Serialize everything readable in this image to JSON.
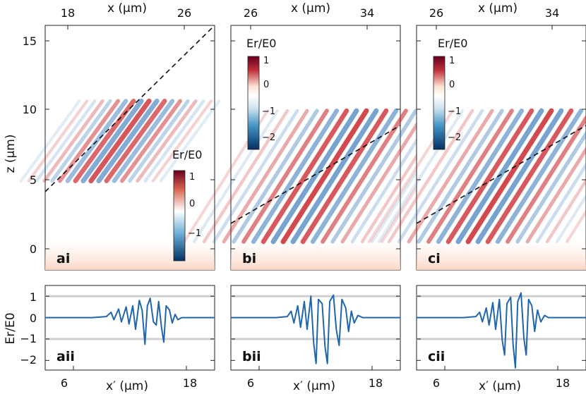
{
  "chart_data": [
    {
      "type": "heatmap",
      "panel_label": "ai",
      "top_xlabel": "x (µm)",
      "top_ticks": [
        "18",
        "26"
      ],
      "ylabel": "z (µm)",
      "yticks": [
        "0",
        "5",
        "10",
        "15"
      ],
      "ylim": [
        -2,
        16
      ],
      "colorbar": {
        "label": "Er/E0",
        "ticks": [
          "1",
          "0",
          "−1"
        ],
        "range": [
          -1.5,
          1.2
        ],
        "colormap": "RdBu_r"
      },
      "dashed_line": {
        "from_z": 4,
        "to_z": 16
      }
    },
    {
      "type": "heatmap",
      "panel_label": "bi",
      "top_xlabel": "x (µm)",
      "top_ticks": [
        "26",
        "34"
      ],
      "ylim": [
        -2,
        16
      ],
      "colorbar": {
        "label": "Er/E0",
        "ticks": [
          "1",
          "0",
          "−1",
          "−2"
        ],
        "range": [
          -2.5,
          1.2
        ],
        "colormap": "RdBu_r"
      },
      "dashed_line": {
        "from_z": 1.8,
        "to_z": 8.8
      }
    },
    {
      "type": "heatmap",
      "panel_label": "ci",
      "top_xlabel": "x (µm)",
      "top_ticks": [
        "26",
        "34"
      ],
      "ylim": [
        -2,
        16
      ],
      "colorbar": {
        "label": "Er/E0",
        "ticks": [
          "1",
          "0",
          "−1",
          "−2"
        ],
        "range": [
          -2.5,
          1.2
        ],
        "colormap": "RdBu_r"
      },
      "dashed_line": {
        "from_z": 1.8,
        "to_z": 8.8
      }
    },
    {
      "type": "line",
      "panel_label": "aii",
      "xlabel": "x′ (µm)",
      "xticks": [
        "6",
        "18"
      ],
      "xlim": [
        3,
        21
      ],
      "ylabel": "Er/E0",
      "yticks": [
        "1",
        "0",
        "−1",
        "−2"
      ],
      "ylim": [
        -2.45,
        1.5
      ],
      "reference_lines": [
        1,
        -1
      ],
      "series": [
        {
          "values": [
            [
              3.0,
              0.0
            ],
            [
              8.0,
              0.0
            ],
            [
              9.5,
              0.05
            ],
            [
              10.0,
              0.25
            ],
            [
              10.3,
              -0.1
            ],
            [
              10.8,
              0.4
            ],
            [
              11.1,
              -0.2
            ],
            [
              11.6,
              0.5
            ],
            [
              11.9,
              -0.3
            ],
            [
              12.3,
              0.55
            ],
            [
              12.6,
              -0.55
            ],
            [
              13.0,
              0.8
            ],
            [
              13.3,
              0.35
            ],
            [
              13.6,
              -1.25
            ],
            [
              13.85,
              0.55
            ],
            [
              14.15,
              0.9
            ],
            [
              14.5,
              -0.2
            ],
            [
              14.8,
              -0.35
            ],
            [
              15.05,
              0.75
            ],
            [
              15.35,
              -0.45
            ],
            [
              15.6,
              -1.15
            ],
            [
              15.85,
              0.55
            ],
            [
              16.2,
              0.35
            ],
            [
              16.5,
              -0.25
            ],
            [
              16.8,
              0.15
            ],
            [
              17.1,
              -0.1
            ],
            [
              17.5,
              0.0
            ],
            [
              21.0,
              0.0
            ]
          ]
        }
      ]
    },
    {
      "type": "line",
      "panel_label": "bii",
      "xlabel": "x′ (µm)",
      "xticks": [
        "6",
        "18"
      ],
      "xlim": [
        3,
        21
      ],
      "ylim": [
        -2.45,
        1.5
      ],
      "reference_lines": [
        1,
        -1
      ],
      "series": [
        {
          "values": [
            [
              3.0,
              0.0
            ],
            [
              7.8,
              0.0
            ],
            [
              9.0,
              0.05
            ],
            [
              9.4,
              0.3
            ],
            [
              9.7,
              -0.25
            ],
            [
              10.1,
              0.55
            ],
            [
              10.4,
              -0.45
            ],
            [
              10.8,
              0.75
            ],
            [
              11.1,
              -0.55
            ],
            [
              11.5,
              1.0
            ],
            [
              11.8,
              -1.2
            ],
            [
              12.05,
              -2.15
            ],
            [
              12.3,
              0.85
            ],
            [
              12.7,
              0.65
            ],
            [
              13.0,
              -1.35
            ],
            [
              13.25,
              -2.15
            ],
            [
              13.5,
              0.75
            ],
            [
              13.9,
              1.05
            ],
            [
              14.2,
              -0.55
            ],
            [
              14.5,
              -1.3
            ],
            [
              14.8,
              0.85
            ],
            [
              15.2,
              0.45
            ],
            [
              15.5,
              -0.65
            ],
            [
              15.8,
              0.3
            ],
            [
              16.1,
              -0.25
            ],
            [
              16.5,
              0.1
            ],
            [
              17.0,
              0.0
            ],
            [
              21.0,
              0.0
            ]
          ]
        }
      ]
    },
    {
      "type": "line",
      "panel_label": "cii",
      "xlabel": "x′ (µm)",
      "xticks": [
        "6",
        "18"
      ],
      "xlim": [
        3,
        21
      ],
      "ylim": [
        -2.45,
        1.5
      ],
      "reference_lines": [
        1,
        -1
      ],
      "series": [
        {
          "values": [
            [
              3.0,
              0.0
            ],
            [
              8.0,
              0.0
            ],
            [
              9.3,
              0.05
            ],
            [
              9.7,
              0.25
            ],
            [
              10.0,
              -0.2
            ],
            [
              10.4,
              0.45
            ],
            [
              10.7,
              -0.35
            ],
            [
              11.1,
              0.7
            ],
            [
              11.4,
              -0.55
            ],
            [
              11.8,
              0.85
            ],
            [
              12.1,
              -1.05
            ],
            [
              12.35,
              -1.75
            ],
            [
              12.6,
              0.65
            ],
            [
              13.0,
              0.95
            ],
            [
              13.25,
              -1.25
            ],
            [
              13.5,
              -2.35
            ],
            [
              13.75,
              0.75
            ],
            [
              14.1,
              1.15
            ],
            [
              14.4,
              -0.95
            ],
            [
              14.65,
              -1.75
            ],
            [
              14.9,
              0.85
            ],
            [
              15.25,
              0.55
            ],
            [
              15.55,
              -0.65
            ],
            [
              15.85,
              0.35
            ],
            [
              16.2,
              -0.2
            ],
            [
              16.6,
              0.1
            ],
            [
              17.0,
              0.0
            ],
            [
              21.0,
              0.0
            ]
          ]
        }
      ]
    }
  ]
}
